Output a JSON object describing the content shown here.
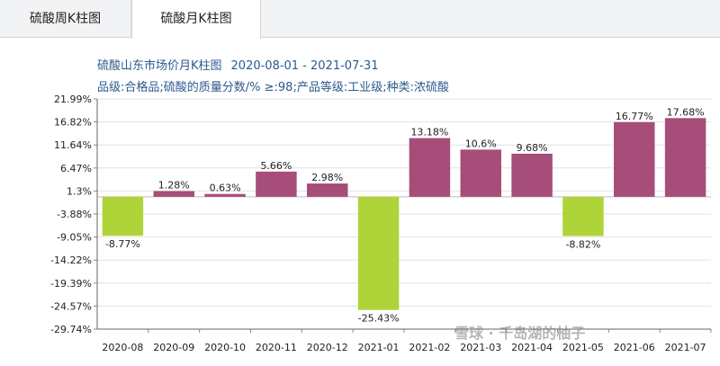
{
  "tabs": [
    {
      "label": "硫酸周K柱图",
      "active": false
    },
    {
      "label": "硫酸月K柱图",
      "active": true
    }
  ],
  "header": {
    "title": "硫酸山东市场价月K柱图",
    "date_range": "2020-08-01 - 2021-07-31",
    "spec": "品级:合格品;硫酸的质量分数/% ≥:98;产品等级:工业级;种类:浓硫酸"
  },
  "watermark": "雪球 · 千岛湖的柚子",
  "colors": {
    "positive": "#a64d79",
    "negative": "#aed439"
  },
  "chart_data": {
    "type": "bar",
    "categories": [
      "2020-08",
      "2020-09",
      "2020-10",
      "2020-11",
      "2020-12",
      "2021-01",
      "2021-02",
      "2021-03",
      "2021-04",
      "2021-05",
      "2021-06",
      "2021-07"
    ],
    "values": [
      -8.77,
      1.28,
      0.63,
      5.66,
      2.98,
      -25.43,
      13.18,
      10.6,
      9.68,
      -8.82,
      16.77,
      17.68
    ],
    "data_labels": [
      "-8.77%",
      "1.28%",
      "0.63%",
      "5.66%",
      "2.98%",
      "-25.43%",
      "13.18%",
      "10.6%",
      "9.68%",
      "-8.82%",
      "16.77%",
      "17.68%"
    ],
    "y_ticks": [
      "21.99%",
      "16.82%",
      "11.64%",
      "6.47%",
      "1.3%",
      "-3.88%",
      "-9.05%",
      "-14.22%",
      "-19.39%",
      "-24.57%",
      "-29.74%"
    ],
    "y_tick_values": [
      21.99,
      16.82,
      11.64,
      6.47,
      1.3,
      -3.88,
      -9.05,
      -14.22,
      -19.39,
      -24.57,
      -29.74
    ],
    "ylim": [
      -29.74,
      21.99
    ],
    "baseline": 0,
    "grid": true,
    "xlabel": "",
    "ylabel": ""
  }
}
